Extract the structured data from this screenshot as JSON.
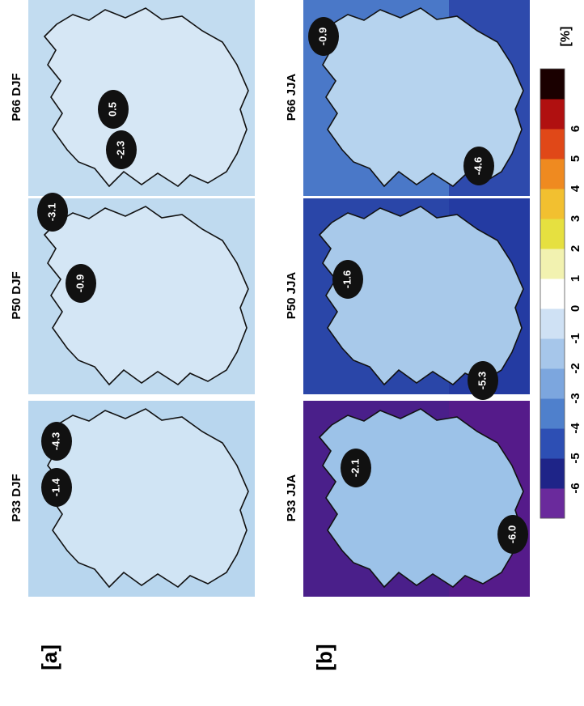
{
  "figure": {
    "rows": [
      {
        "label": "[a]",
        "maps": [
          {
            "title": "P66 DJF",
            "bubbles": [
              "-2.3",
              "0.5"
            ]
          },
          {
            "title": "P50 DJF",
            "bubbles": [
              "-3.1",
              "-0.9"
            ]
          },
          {
            "title": "P33 DJF",
            "bubbles": [
              "-4.3",
              "-1.4"
            ]
          }
        ]
      },
      {
        "label": "[b]",
        "maps": [
          {
            "title": "P66 JJA",
            "bubbles": [
              "-0.9",
              "-4.6"
            ]
          },
          {
            "title": "P50 JJA",
            "bubbles": [
              "-1.6",
              "-5.3"
            ]
          },
          {
            "title": "P33 JJA",
            "bubbles": [
              "-2.1",
              "-6.0"
            ]
          }
        ]
      }
    ],
    "colorbar": {
      "ticks": [
        -6,
        -5,
        -4,
        -3,
        -2,
        -1,
        0,
        1,
        2,
        3,
        4,
        5,
        6
      ],
      "unit": "[%]"
    }
  }
}
